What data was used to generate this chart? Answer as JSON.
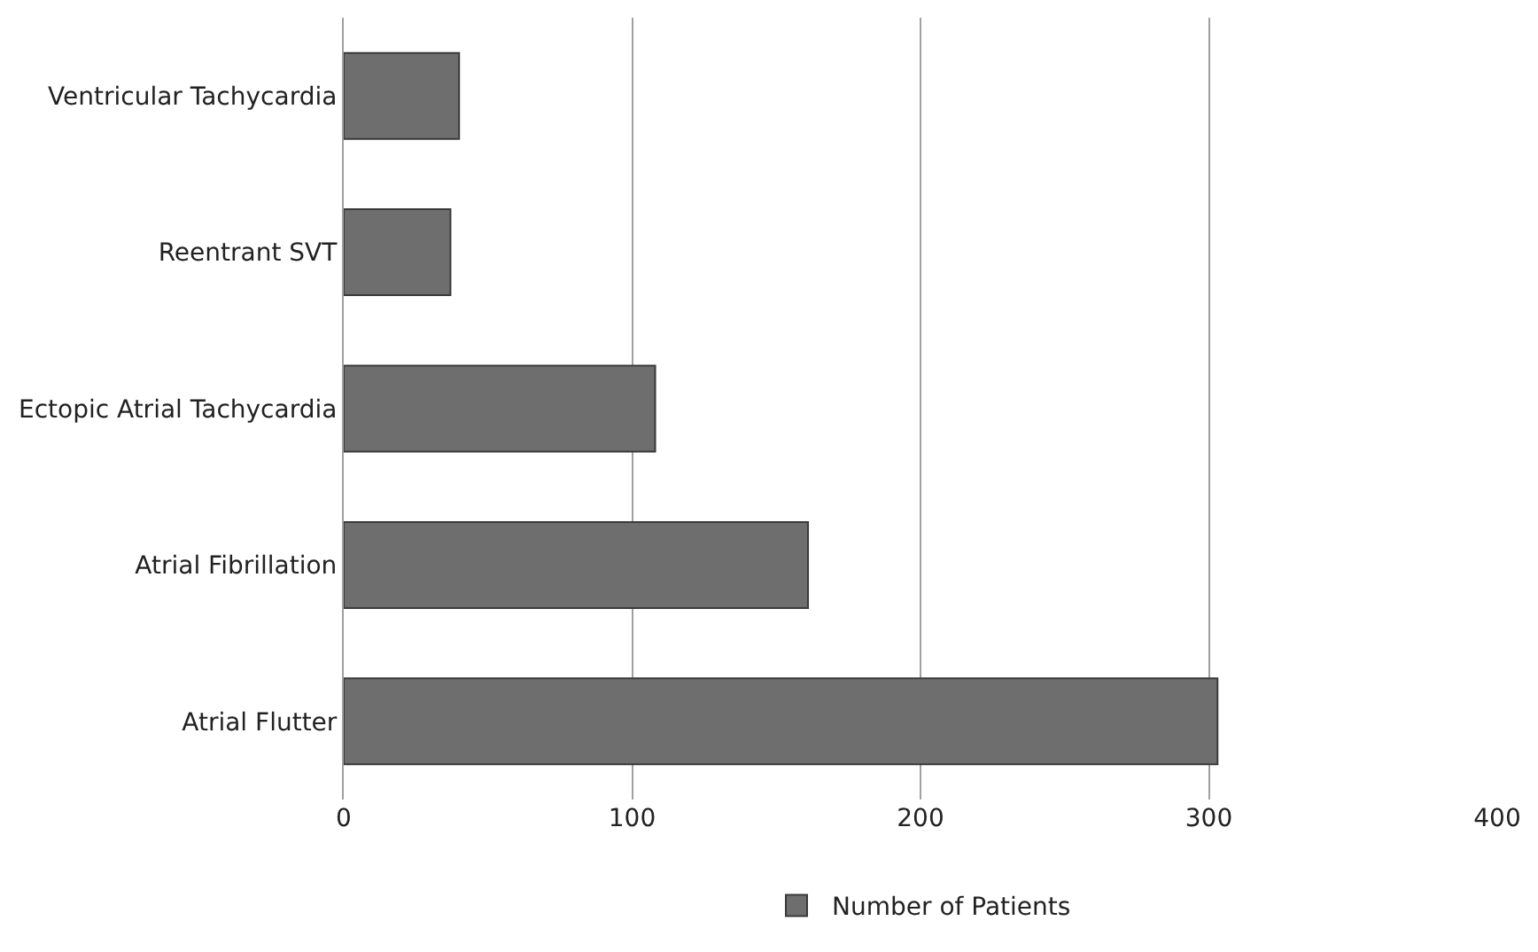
{
  "chart_data": {
    "type": "bar",
    "orientation": "horizontal",
    "categories": [
      "Ventricular Tachycardia",
      "Reentrant SVT",
      "Ectopic Atrial Tachycardia",
      "Atrial Fibrillation",
      "Atrial Flutter"
    ],
    "series": [
      {
        "name": "Number of Patients",
        "color": "#6e6e6e",
        "values": [
          40,
          37,
          108,
          161,
          303
        ]
      }
    ],
    "xlim": [
      0,
      400
    ],
    "xticks": [
      0,
      100,
      200,
      300,
      400
    ],
    "grid": "x",
    "legend": "bottom"
  }
}
